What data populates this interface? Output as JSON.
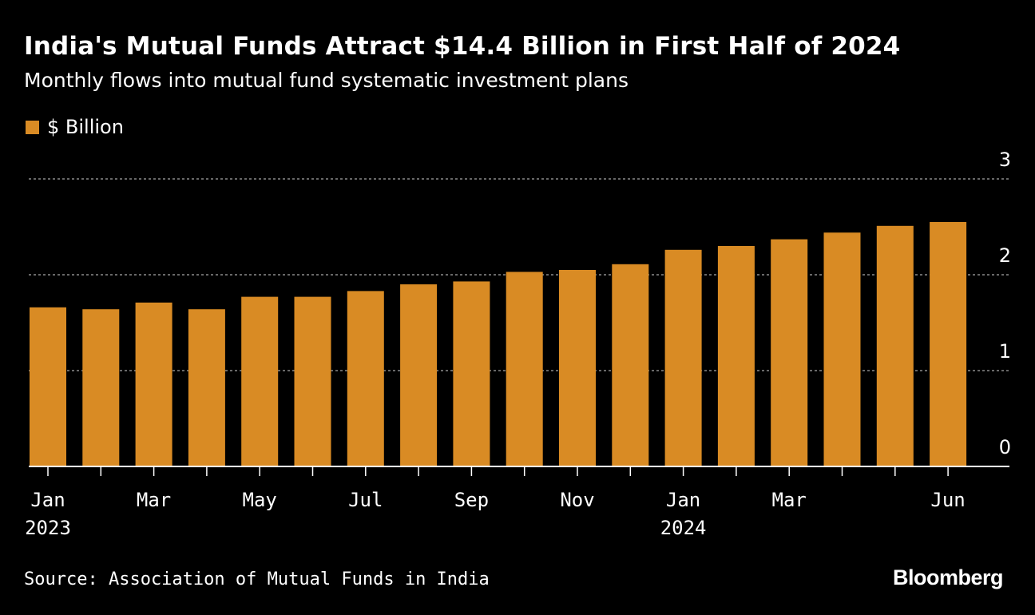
{
  "header": {
    "title": "India's Mutual Funds Attract $14.4 Billion in First Half of 2024",
    "subtitle": "Monthly flows into mutual fund systematic investment plans"
  },
  "colors": {
    "bar": "#d98b24",
    "background": "#000000",
    "grid": "#8a8a8a",
    "text": "#ffffff"
  },
  "chart_data": {
    "type": "bar",
    "title": "India's Mutual Funds Attract $14.4 Billion in First Half of 2024",
    "subtitle": "Monthly flows into mutual fund systematic investment plans",
    "xlabel": "",
    "ylabel": "",
    "ylim": [
      0,
      3
    ],
    "yticks": [
      0,
      1,
      2,
      3
    ],
    "y_axis_side": "right",
    "grid": "horizontal dotted",
    "legend": {
      "position": "top-left",
      "entries": [
        "$ Billion"
      ]
    },
    "categories": [
      "Jan 2023",
      "Feb 2023",
      "Mar 2023",
      "Apr 2023",
      "May 2023",
      "Jun 2023",
      "Jul 2023",
      "Aug 2023",
      "Sep 2023",
      "Oct 2023",
      "Nov 2023",
      "Dec 2023",
      "Jan 2024",
      "Feb 2024",
      "Mar 2024",
      "Apr 2024",
      "May 2024",
      "Jun 2024"
    ],
    "series": [
      {
        "name": "$ Billion",
        "values": [
          1.66,
          1.64,
          1.71,
          1.64,
          1.77,
          1.77,
          1.83,
          1.9,
          1.93,
          2.03,
          2.05,
          2.11,
          2.26,
          2.3,
          2.37,
          2.44,
          2.51,
          2.55
        ]
      }
    ],
    "x_tick_labels": [
      {
        "index": 0,
        "label": "Jan",
        "year": "2023"
      },
      {
        "index": 2,
        "label": "Mar"
      },
      {
        "index": 4,
        "label": "May"
      },
      {
        "index": 6,
        "label": "Jul"
      },
      {
        "index": 8,
        "label": "Sep"
      },
      {
        "index": 10,
        "label": "Nov"
      },
      {
        "index": 12,
        "label": "Jan",
        "year": "2024"
      },
      {
        "index": 14,
        "label": "Mar"
      },
      {
        "index": 17,
        "label": "Jun"
      }
    ]
  },
  "footer": {
    "source": "Source: Association of Mutual Funds in India",
    "brand": "Bloomberg"
  }
}
